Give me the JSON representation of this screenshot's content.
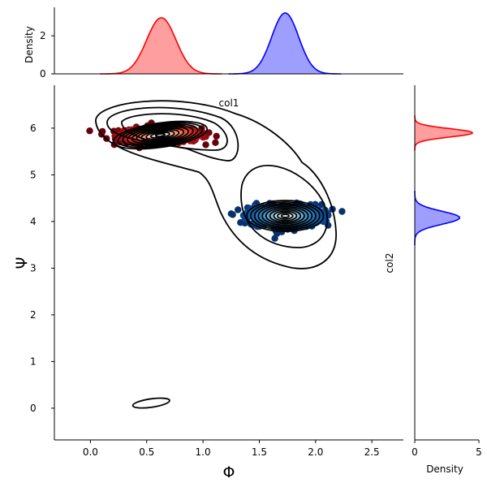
{
  "chart_data": {
    "type": "scatter",
    "xlabel": "Φ",
    "ylabel": "Ψ",
    "xlim": [
      -0.32,
      2.78
    ],
    "ylim": [
      -0.68,
      6.92
    ],
    "x_ticks": [
      "0.0",
      "0.5",
      "1.0",
      "1.5",
      "2.0",
      "2.5"
    ],
    "y_ticks": [
      "0",
      "1",
      "2",
      "3",
      "4",
      "5",
      "6"
    ],
    "clusters": [
      {
        "color": "#ff0000",
        "colormap": "Reds",
        "center": [
          0.62,
          5.85
        ],
        "spread": [
          0.18,
          0.08
        ]
      },
      {
        "color": "#0000ff",
        "colormap": "Blues",
        "center": [
          1.73,
          4.12
        ],
        "spread": [
          0.16,
          0.12
        ]
      }
    ],
    "contour_levels": 10,
    "kde_contours": [
      {
        "cx": 0.62,
        "cy": 5.85,
        "rx": 0.42,
        "ry": 0.26,
        "angle": -8
      },
      {
        "cx": 1.73,
        "cy": 4.12,
        "rx": 0.34,
        "ry": 0.33,
        "angle": 0
      }
    ],
    "outlier_contour": {
      "cx": 0.54,
      "cy": 0.11,
      "rx": 0.165,
      "ry": 0.09,
      "angle": -8
    },
    "top_marginal": {
      "xlabel": "col1",
      "ylabel": "Density",
      "ylim": [
        0,
        3.5
      ],
      "y_ticks": [
        "0",
        "2"
      ],
      "peaks": [
        {
          "color": "#ff0000",
          "mean": 0.63,
          "sd": 0.13,
          "max": 2.95
        },
        {
          "color": "#0000ff",
          "mean": 1.73,
          "sd": 0.12,
          "max": 3.2
        }
      ]
    },
    "right_marginal": {
      "xlabel": "Density",
      "ylabel": "col2",
      "xlim": [
        0,
        5
      ],
      "x_ticks": [
        "0",
        "5"
      ],
      "peaks": [
        {
          "color": "#ff0000",
          "mean": 5.9,
          "sd": 0.09,
          "max": 4.5
        },
        {
          "color": "#0000ff",
          "mean": 4.08,
          "sd": 0.14,
          "max": 3.5
        }
      ]
    }
  }
}
